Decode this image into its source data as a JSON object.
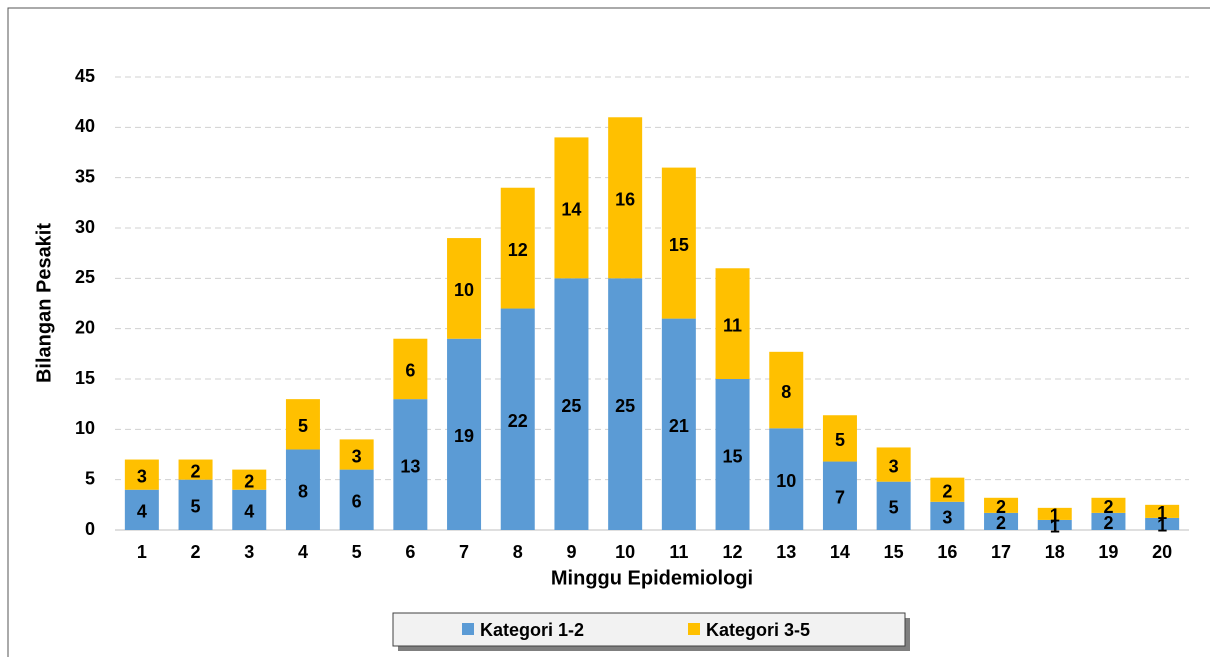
{
  "chart_data": {
    "type": "stacked-bar",
    "x_label": "Minggu Epidemiologi",
    "y_label": "Bilangan Pesakit",
    "categories": [
      "1",
      "2",
      "3",
      "4",
      "5",
      "6",
      "7",
      "8",
      "9",
      "10",
      "11",
      "12",
      "13",
      "14",
      "15",
      "16",
      "17",
      "18",
      "19",
      "20"
    ],
    "series": [
      {
        "name": "Kategori 1-2",
        "color": "#5b9bd5",
        "values": [
          4,
          5,
          4,
          8,
          6,
          13,
          19,
          22,
          25,
          25,
          21,
          15,
          10.1,
          6.8,
          4.8,
          2.8,
          1.7,
          1.0,
          1.7,
          1.2
        ],
        "value_labels": [
          "4",
          "5",
          "4",
          "8",
          "6",
          "13",
          "19",
          "22",
          "25",
          "25",
          "21",
          "15",
          "10",
          "7",
          "5",
          "3",
          "2",
          "1",
          "2",
          "1"
        ]
      },
      {
        "name": "Kategori 3-5",
        "color": "#ffc000",
        "values": [
          3,
          2,
          2,
          5,
          3,
          6,
          10,
          12,
          14,
          16,
          15,
          11,
          7.6,
          4.6,
          3.4,
          2.4,
          1.5,
          1.2,
          1.5,
          1.3
        ],
        "value_labels": [
          "3",
          "2",
          "2",
          "5",
          "3",
          "6",
          "10",
          "12",
          "14",
          "16",
          "15",
          "11",
          "8",
          "5",
          "3",
          "2",
          "2",
          "1",
          "2",
          "1"
        ]
      }
    ],
    "ylim": [
      0,
      45
    ],
    "yticks": [
      0,
      5,
      10,
      15,
      20,
      25,
      30,
      35,
      40,
      45
    ],
    "grid": true,
    "legend": "bottom"
  }
}
